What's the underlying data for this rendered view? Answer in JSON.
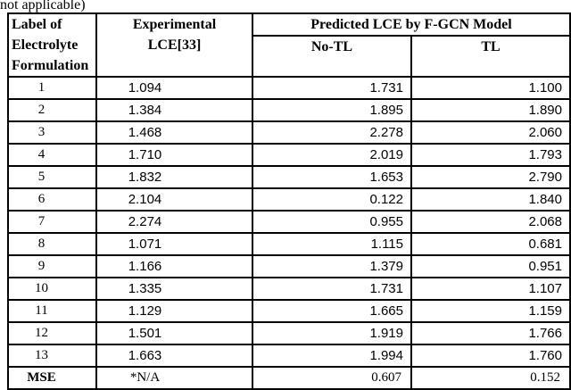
{
  "caption": "not applicable)",
  "colors": {
    "border": "#000000",
    "text": "#000000",
    "background": "#ffffff"
  },
  "table": {
    "header": {
      "label_col": [
        "Label of",
        "Electrolyte",
        "Formulation"
      ],
      "experimental_col": [
        "Experimental",
        "LCE[33]"
      ],
      "predicted_group": "Predicted LCE by F-GCN Model",
      "no_tl": "No-TL",
      "tl": "TL"
    },
    "rows": [
      {
        "label": "1",
        "experimental": "1.094",
        "no_tl": "1.731",
        "tl": "1.100"
      },
      {
        "label": "2",
        "experimental": "1.384",
        "no_tl": "1.895",
        "tl": "1.890"
      },
      {
        "label": "3",
        "experimental": "1.468",
        "no_tl": "2.278",
        "tl": "2.060"
      },
      {
        "label": "4",
        "experimental": "1.710",
        "no_tl": "2.019",
        "tl": "1.793"
      },
      {
        "label": "5",
        "experimental": "1.832",
        "no_tl": "1.653",
        "tl": "2.790"
      },
      {
        "label": "6",
        "experimental": "2.104",
        "no_tl": "0.122",
        "tl": "1.840"
      },
      {
        "label": "7",
        "experimental": "2.274",
        "no_tl": "0.955",
        "tl": "2.068"
      },
      {
        "label": "8",
        "experimental": "1.071",
        "no_tl": "1.115",
        "tl": "0.681"
      },
      {
        "label": "9",
        "experimental": "1.166",
        "no_tl": "1.379",
        "tl": "0.951"
      },
      {
        "label": "10",
        "experimental": "1.335",
        "no_tl": "1.731",
        "tl": "1.107"
      },
      {
        "label": "11",
        "experimental": "1.129",
        "no_tl": "1.665",
        "tl": "1.159"
      },
      {
        "label": "12",
        "experimental": "1.501",
        "no_tl": "1.919",
        "tl": "1.766"
      },
      {
        "label": "13",
        "experimental": "1.663",
        "no_tl": "1.994",
        "tl": "1.760"
      }
    ],
    "mse_row": {
      "label": "MSE",
      "experimental": "*N/A",
      "no_tl": "0.607",
      "tl": "0.152"
    }
  }
}
